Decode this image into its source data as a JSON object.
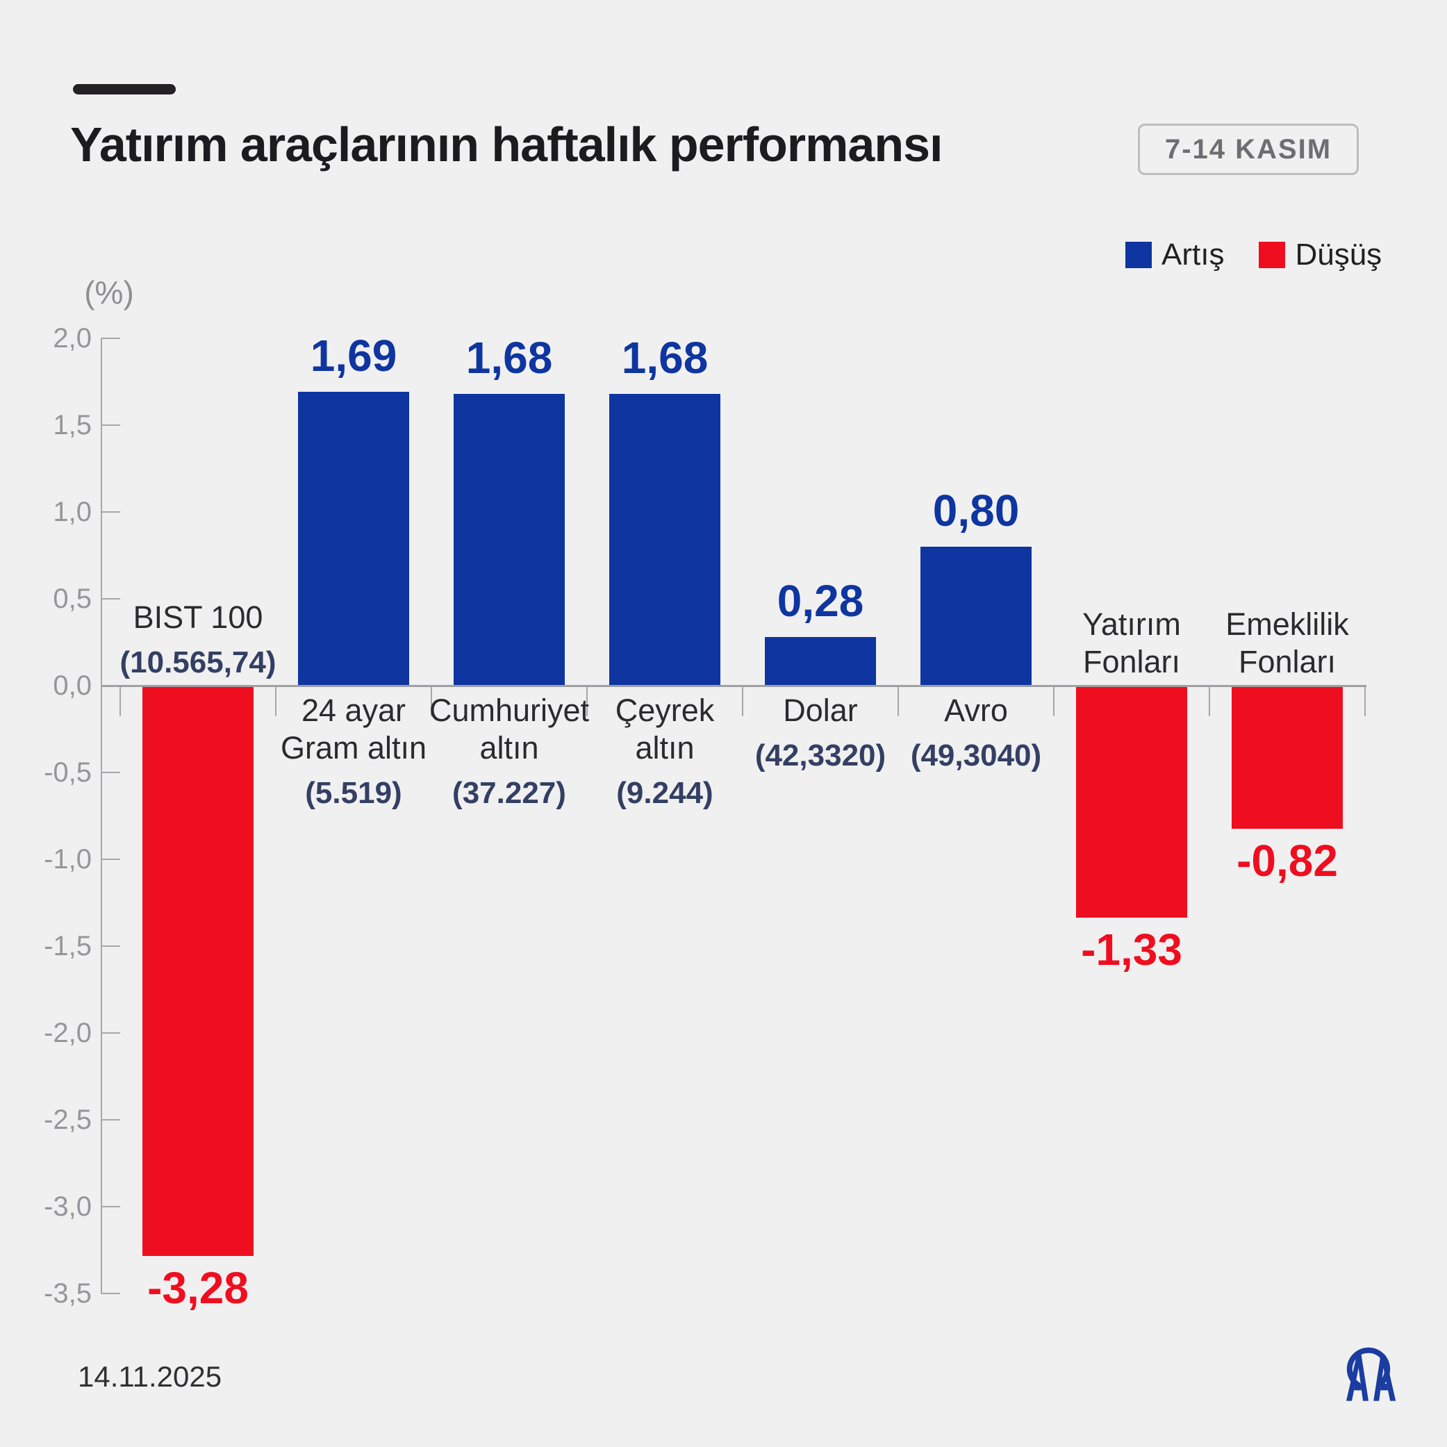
{
  "header": {
    "title": "Yatırım araçlarının haftalık performansı",
    "period_badge": "7-14 KASIM"
  },
  "legend": {
    "items": [
      {
        "label": "Artış",
        "color": "#0E35A0"
      },
      {
        "label": "Düşüş",
        "color": "#EF0E1F"
      }
    ]
  },
  "footer": {
    "date": "14.11.2025",
    "logo": "AA"
  },
  "chart_data": {
    "type": "bar",
    "title": "Yatırım araçlarının haftalık performansı",
    "period": "7-14 KASIM",
    "ylabel": "(%)",
    "ylim": [
      -3.5,
      2.0
    ],
    "ytick_step": 0.5,
    "ytick_labels": [
      "2,0",
      "1,5",
      "1,0",
      "0,5",
      "0,0",
      "-0,5",
      "-1,0",
      "-1,5",
      "-2,0",
      "-2,5",
      "-3,0",
      "-3,5"
    ],
    "grid": false,
    "legend_position": "top-right",
    "colors": {
      "up": "#0E35A0",
      "down": "#EF0E1F"
    },
    "categories": [
      "BIST 100",
      "24 ayar Gram altın",
      "Cumhuriyet altın",
      "Çeyrek altın",
      "Dolar",
      "Avro",
      "Yatırım Fonları",
      "Emeklilik Fonları"
    ],
    "values": [
      -3.28,
      1.69,
      1.68,
      1.68,
      0.28,
      0.8,
      -1.33,
      -0.82
    ],
    "bars": [
      {
        "label_lines": [
          "BIST 100"
        ],
        "sublabel": "(10.565,74)",
        "value": -3.28,
        "value_text": "-3,28"
      },
      {
        "label_lines": [
          "24 ayar",
          "Gram altın"
        ],
        "sublabel": "(5.519)",
        "value": 1.69,
        "value_text": "1,69"
      },
      {
        "label_lines": [
          "Cumhuriyet",
          "altın"
        ],
        "sublabel": "(37.227)",
        "value": 1.68,
        "value_text": "1,68"
      },
      {
        "label_lines": [
          "Çeyrek",
          "altın"
        ],
        "sublabel": "(9.244)",
        "value": 1.68,
        "value_text": "1,68"
      },
      {
        "label_lines": [
          "Dolar"
        ],
        "sublabel": "(42,3320)",
        "value": 0.28,
        "value_text": "0,28"
      },
      {
        "label_lines": [
          "Avro"
        ],
        "sublabel": "(49,3040)",
        "value": 0.8,
        "value_text": "0,80"
      },
      {
        "label_lines": [
          "Yatırım",
          "Fonları"
        ],
        "sublabel": null,
        "value": -1.33,
        "value_text": "-1,33"
      },
      {
        "label_lines": [
          "Emeklilik",
          "Fonları"
        ],
        "sublabel": null,
        "value": -0.82,
        "value_text": "-0,82"
      }
    ]
  }
}
